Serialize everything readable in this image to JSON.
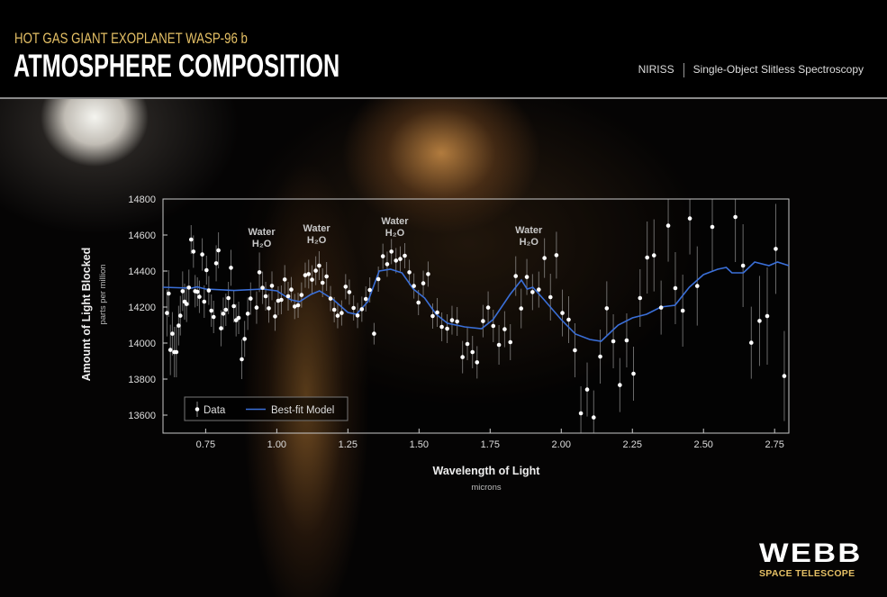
{
  "header": {
    "subtitle": "HOT GAS GIANT EXOPLANET WASP-96 b",
    "title": "ATMOSPHERE COMPOSITION",
    "instrument": "NIRISS",
    "method": "Single-Object Slitless Spectroscopy"
  },
  "logo": {
    "name": "WEBB",
    "tagline": "SPACE TELESCOPE"
  },
  "colors": {
    "accent_gold": "#e5c065",
    "model_line": "#3a6fd8",
    "data_points": "#ffffff"
  },
  "chart_data": {
    "type": "scatter",
    "xlabel": "Wavelength of Light",
    "xunit": "microns",
    "ylabel": "Amount of Light Blocked",
    "yunit": "parts per million",
    "xlim": [
      0.6,
      2.8
    ],
    "ylim": [
      13500,
      14800
    ],
    "xticks": [
      "0.75",
      "1.00",
      "1.25",
      "1.50",
      "1.75",
      "2.00",
      "2.25",
      "2.50",
      "2.75"
    ],
    "yticks": [
      "13600",
      "13800",
      "14000",
      "14200",
      "14400",
      "14600",
      "14800"
    ],
    "grid": false,
    "legend": {
      "placement": "bottom-left",
      "entries": [
        "Data",
        "Best-fit Model"
      ]
    },
    "annotations": [
      {
        "line1": "Water",
        "line2": "H₂O",
        "x": 0.947,
        "y": 14600
      },
      {
        "line1": "Water",
        "line2": "H₂O",
        "x": 1.14,
        "y": 14620
      },
      {
        "line1": "Water",
        "line2": "H₂O",
        "x": 1.415,
        "y": 14660
      },
      {
        "line1": "Water",
        "line2": "H₂O",
        "x": 1.886,
        "y": 14610
      }
    ],
    "series": [
      {
        "name": "Data",
        "kind": "points_with_errorbars",
        "points": [
          [
            0.614,
            14167,
            130
          ],
          [
            0.62,
            14275,
            130
          ],
          [
            0.626,
            13962,
            140
          ],
          [
            0.633,
            14052,
            120
          ],
          [
            0.64,
            13950,
            140
          ],
          [
            0.647,
            13950,
            140
          ],
          [
            0.655,
            14097,
            110
          ],
          [
            0.661,
            14152,
            110
          ],
          [
            0.669,
            14288,
            110
          ],
          [
            0.676,
            14230,
            100
          ],
          [
            0.683,
            14217,
            100
          ],
          [
            0.691,
            14308,
            100
          ],
          [
            0.699,
            14575,
            80
          ],
          [
            0.707,
            14508,
            90
          ],
          [
            0.713,
            14288,
            90
          ],
          [
            0.721,
            14285,
            80
          ],
          [
            0.728,
            14257,
            90
          ],
          [
            0.738,
            14492,
            90
          ],
          [
            0.745,
            14230,
            90
          ],
          [
            0.753,
            14405,
            80
          ],
          [
            0.761,
            14292,
            80
          ],
          [
            0.77,
            14180,
            90
          ],
          [
            0.778,
            14145,
            90
          ],
          [
            0.787,
            14443,
            100
          ],
          [
            0.795,
            14515,
            100
          ],
          [
            0.804,
            14082,
            100
          ],
          [
            0.812,
            14163,
            90
          ],
          [
            0.821,
            14185,
            90
          ],
          [
            0.83,
            14250,
            90
          ],
          [
            0.839,
            14418,
            100
          ],
          [
            0.849,
            14205,
            90
          ],
          [
            0.857,
            14127,
            90
          ],
          [
            0.866,
            14140,
            90
          ],
          [
            0.877,
            13910,
            110
          ],
          [
            0.887,
            14023,
            100
          ],
          [
            0.898,
            14163,
            90
          ],
          [
            0.908,
            14247,
            90
          ],
          [
            0.929,
            14197,
            90
          ],
          [
            0.939,
            14393,
            110
          ],
          [
            0.95,
            14307,
            90
          ],
          [
            0.961,
            14260,
            80
          ],
          [
            0.972,
            14193,
            80
          ],
          [
            0.983,
            14318,
            80
          ],
          [
            0.994,
            14148,
            80
          ],
          [
            1.005,
            14235,
            80
          ],
          [
            1.016,
            14240,
            80
          ],
          [
            1.028,
            14353,
            80
          ],
          [
            1.04,
            14260,
            80
          ],
          [
            1.051,
            14297,
            70
          ],
          [
            1.063,
            14203,
            70
          ],
          [
            1.075,
            14210,
            70
          ],
          [
            1.087,
            14267,
            70
          ],
          [
            1.1,
            14377,
            70
          ],
          [
            1.112,
            14383,
            80
          ],
          [
            1.124,
            14352,
            80
          ],
          [
            1.137,
            14402,
            80
          ],
          [
            1.149,
            14430,
            80
          ],
          [
            1.161,
            14335,
            80
          ],
          [
            1.175,
            14370,
            80
          ],
          [
            1.189,
            14247,
            70
          ],
          [
            1.202,
            14185,
            70
          ],
          [
            1.214,
            14152,
            70
          ],
          [
            1.228,
            14167,
            70
          ],
          [
            1.242,
            14313,
            70
          ],
          [
            1.255,
            14283,
            70
          ],
          [
            1.27,
            14195,
            70
          ],
          [
            1.284,
            14153,
            70
          ],
          [
            1.299,
            14188,
            70
          ],
          [
            1.313,
            14245,
            70
          ],
          [
            1.327,
            14295,
            70
          ],
          [
            1.342,
            14052,
            60
          ],
          [
            1.357,
            14355,
            70
          ],
          [
            1.373,
            14482,
            70
          ],
          [
            1.388,
            14438,
            70
          ],
          [
            1.403,
            14508,
            70
          ],
          [
            1.419,
            14458,
            70
          ],
          [
            1.434,
            14467,
            70
          ],
          [
            1.45,
            14485,
            70
          ],
          [
            1.466,
            14393,
            70
          ],
          [
            1.482,
            14317,
            70
          ],
          [
            1.498,
            14225,
            70
          ],
          [
            1.515,
            14332,
            70
          ],
          [
            1.532,
            14383,
            70
          ],
          [
            1.548,
            14150,
            70
          ],
          [
            1.564,
            14170,
            80
          ],
          [
            1.58,
            14090,
            80
          ],
          [
            1.599,
            14080,
            80
          ],
          [
            1.616,
            14127,
            80
          ],
          [
            1.634,
            14120,
            80
          ],
          [
            1.653,
            13922,
            90
          ],
          [
            1.67,
            13995,
            90
          ],
          [
            1.688,
            13950,
            90
          ],
          [
            1.704,
            13893,
            90
          ],
          [
            1.725,
            14122,
            90
          ],
          [
            1.743,
            14197,
            90
          ],
          [
            1.761,
            14095,
            90
          ],
          [
            1.781,
            13990,
            110
          ],
          [
            1.801,
            14077,
            100
          ],
          [
            1.821,
            14005,
            100
          ],
          [
            1.84,
            14372,
            110
          ],
          [
            1.859,
            14192,
            110
          ],
          [
            1.879,
            14367,
            100
          ],
          [
            1.899,
            14283,
            100
          ],
          [
            1.921,
            14297,
            100
          ],
          [
            1.941,
            14472,
            110
          ],
          [
            1.962,
            14255,
            130
          ],
          [
            1.983,
            14488,
            130
          ],
          [
            2.004,
            14167,
            130
          ],
          [
            2.026,
            14130,
            130
          ],
          [
            2.048,
            13960,
            150
          ],
          [
            2.069,
            13610,
            150
          ],
          [
            2.091,
            13742,
            150
          ],
          [
            2.114,
            13587,
            150
          ],
          [
            2.137,
            13925,
            150
          ],
          [
            2.16,
            14193,
            150
          ],
          [
            2.183,
            14010,
            150
          ],
          [
            2.206,
            13767,
            150
          ],
          [
            2.23,
            14015,
            150
          ],
          [
            2.254,
            13830,
            150
          ],
          [
            2.277,
            14250,
            160
          ],
          [
            2.302,
            14475,
            200
          ],
          [
            2.326,
            14487,
            200
          ],
          [
            2.351,
            14197,
            150
          ],
          [
            2.376,
            14652,
            200
          ],
          [
            2.401,
            14305,
            200
          ],
          [
            2.427,
            14180,
            200
          ],
          [
            2.452,
            14692,
            200
          ],
          [
            2.478,
            14317,
            220
          ],
          [
            2.531,
            14645,
            250
          ],
          [
            2.612,
            14700,
            250
          ],
          [
            2.639,
            14430,
            230
          ],
          [
            2.668,
            14002,
            200
          ],
          [
            2.697,
            14123,
            250
          ],
          [
            2.724,
            14150,
            270
          ],
          [
            2.754,
            14523,
            250
          ],
          [
            2.784,
            13817,
            250
          ]
        ]
      },
      {
        "name": "Best-fit Model",
        "kind": "line",
        "points": [
          [
            0.6,
            14310
          ],
          [
            0.7,
            14305
          ],
          [
            0.72,
            14312
          ],
          [
            0.75,
            14300
          ],
          [
            0.85,
            14292
          ],
          [
            0.95,
            14300
          ],
          [
            1.0,
            14290
          ],
          [
            1.05,
            14240
          ],
          [
            1.08,
            14230
          ],
          [
            1.12,
            14270
          ],
          [
            1.15,
            14290
          ],
          [
            1.2,
            14240
          ],
          [
            1.25,
            14170
          ],
          [
            1.28,
            14160
          ],
          [
            1.32,
            14230
          ],
          [
            1.36,
            14400
          ],
          [
            1.4,
            14410
          ],
          [
            1.44,
            14390
          ],
          [
            1.48,
            14300
          ],
          [
            1.52,
            14250
          ],
          [
            1.56,
            14160
          ],
          [
            1.6,
            14110
          ],
          [
            1.66,
            14090
          ],
          [
            1.72,
            14080
          ],
          [
            1.76,
            14130
          ],
          [
            1.82,
            14270
          ],
          [
            1.86,
            14350
          ],
          [
            1.88,
            14300
          ],
          [
            1.9,
            14310
          ],
          [
            1.94,
            14240
          ],
          [
            2.0,
            14130
          ],
          [
            2.05,
            14050
          ],
          [
            2.1,
            14020
          ],
          [
            2.14,
            14010
          ],
          [
            2.18,
            14070
          ],
          [
            2.2,
            14100
          ],
          [
            2.25,
            14140
          ],
          [
            2.3,
            14160
          ],
          [
            2.35,
            14200
          ],
          [
            2.4,
            14210
          ],
          [
            2.45,
            14310
          ],
          [
            2.5,
            14380
          ],
          [
            2.55,
            14410
          ],
          [
            2.58,
            14420
          ],
          [
            2.6,
            14390
          ],
          [
            2.64,
            14390
          ],
          [
            2.68,
            14450
          ],
          [
            2.73,
            14430
          ],
          [
            2.76,
            14450
          ],
          [
            2.8,
            14430
          ]
        ]
      }
    ]
  }
}
